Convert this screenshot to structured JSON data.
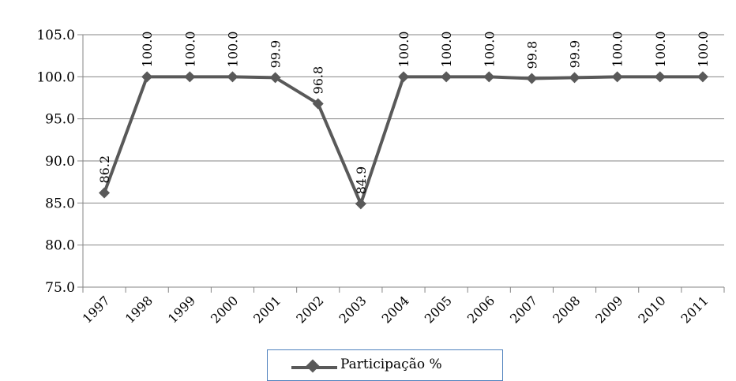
{
  "chart_data": {
    "type": "line",
    "categories": [
      "1997",
      "1998",
      "1999",
      "2000",
      "2001",
      "2002",
      "2003",
      "2004",
      "2005",
      "2006",
      "2007",
      "2008",
      "2009",
      "2010",
      "2011"
    ],
    "series": [
      {
        "name": "Participação %",
        "values": [
          86.2,
          100.0,
          100.0,
          100.0,
          99.9,
          96.8,
          84.9,
          100.0,
          100.0,
          100.0,
          99.8,
          99.9,
          100.0,
          100.0,
          100.0
        ],
        "labels": [
          "86.2",
          "100.0",
          "100.0",
          "100.0",
          "99.9",
          "96.8",
          "84.9",
          "100.0",
          "100.0",
          "100.0",
          "99.8",
          "99.9",
          "100.0",
          "100.0",
          "100.0"
        ],
        "color": "#595959"
      }
    ],
    "y_ticks": [
      "75.0",
      "80.0",
      "85.0",
      "90.0",
      "95.0",
      "100.0",
      "105.0"
    ],
    "ylim": [
      75,
      105
    ],
    "grid": true,
    "legend": "bottom"
  }
}
